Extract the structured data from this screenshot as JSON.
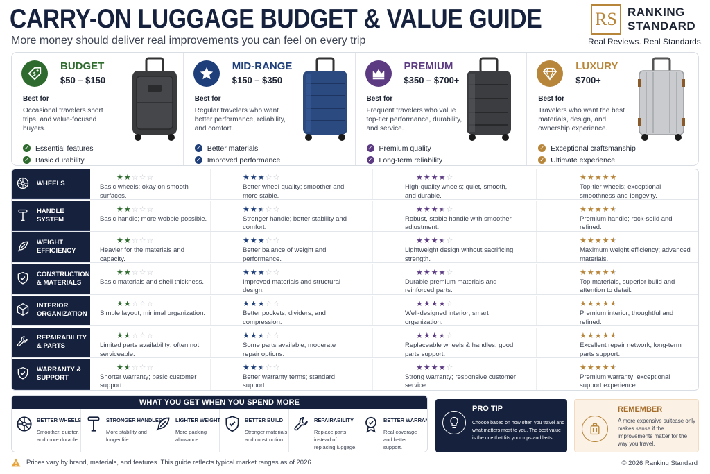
{
  "header": {
    "title": "CARRY-ON LUGGAGE BUDGET & VALUE GUIDE",
    "subtitle": "More money should deliver real improvements you can feel on every trip",
    "brand_logo": "RS",
    "brand_line1": "RANKING",
    "brand_line2": "STANDARD",
    "brand_tagline": "Real Reviews. Real Standards."
  },
  "colors": {
    "navy": "#15213d",
    "budget": "#2f6b2f",
    "midrange": "#1f3f7a",
    "premium": "#5c3b82",
    "luxury": "#b8863b"
  },
  "tiers": [
    {
      "name": "BUDGET",
      "price": "$50 – $150",
      "best_label": "Best for",
      "desc": "Occasional travelers short trips, and value-focused buyers.",
      "features": [
        "Essential features",
        "Basic durability"
      ],
      "icon": "tag-icon",
      "bag": "dark-fabric-suitcase"
    },
    {
      "name": "MID-RANGE",
      "price": "$150 – $350",
      "best_label": "Best for",
      "desc": "Regular travelers who want better performance, reliability, and comfort.",
      "features": [
        "Better materials",
        "Improved performance"
      ],
      "icon": "star-icon",
      "bag": "blue-hardshell-suitcase"
    },
    {
      "name": "PREMIUM",
      "price": "$350 – $700+",
      "best_label": "Best for",
      "desc": "Frequent travelers who value top-tier performance, durability, and service.",
      "features": [
        "Premium quality",
        "Long-term reliability"
      ],
      "icon": "crown-icon",
      "bag": "charcoal-hardshell-suitcase"
    },
    {
      "name": "LUXURY",
      "price": "$700+",
      "best_label": "Best for",
      "desc": "Travelers who want the best materials, design, and ownership experience.",
      "features": [
        "Exceptional craftsmanship",
        "Ultimate experience"
      ],
      "icon": "diamond-icon",
      "bag": "aluminum-suitcase"
    }
  ],
  "rows": [
    {
      "label": "WHEELS",
      "icon": "wheel-icon",
      "cells": [
        {
          "stars": 2,
          "text": "Basic wheels; okay on smooth surfaces."
        },
        {
          "stars": 3,
          "text": "Better wheel quality; smoother and more stable."
        },
        {
          "stars": 4,
          "text": "High-quality wheels; quiet, smooth, and durable."
        },
        {
          "stars": 5,
          "text": "Top-tier wheels; exceptional smoothness and longevity."
        }
      ]
    },
    {
      "label": "HANDLE SYSTEM",
      "icon": "handle-icon",
      "cells": [
        {
          "stars": 2,
          "text": "Basic handle; more wobble possible."
        },
        {
          "stars": 2.5,
          "text": "Stronger handle; better stability and comfort."
        },
        {
          "stars": 3.5,
          "text": "Robust, stable handle with smoother adjustment."
        },
        {
          "stars": 4.5,
          "text": "Premium handle; rock-solid and refined."
        }
      ]
    },
    {
      "label": "WEIGHT EFFICIENCY",
      "icon": "feather-icon",
      "cells": [
        {
          "stars": 2,
          "text": "Heavier for the materials and capacity."
        },
        {
          "stars": 3,
          "text": "Better balance of weight and performance."
        },
        {
          "stars": 3.5,
          "text": "Lightweight design without sacrificing strength."
        },
        {
          "stars": 4.5,
          "text": "Maximum weight efficiency; advanced materials."
        }
      ]
    },
    {
      "label": "CONSTRUCTION & MATERIALS",
      "icon": "shield-check-icon",
      "cells": [
        {
          "stars": 2,
          "text": "Basic materials and shell thickness."
        },
        {
          "stars": 3,
          "text": "Improved materials and structural design."
        },
        {
          "stars": 4,
          "text": "Durable premium materials and reinforced parts."
        },
        {
          "stars": 4.5,
          "text": "Top materials, superior build and attention to detail."
        }
      ]
    },
    {
      "label": "INTERIOR ORGANIZATION",
      "icon": "box-icon",
      "cells": [
        {
          "stars": 2,
          "text": "Simple layout; minimal organization."
        },
        {
          "stars": 3,
          "text": "Better pockets, dividers, and compression."
        },
        {
          "stars": 4,
          "text": "Well-designed interior; smart organization."
        },
        {
          "stars": 4.5,
          "text": "Premium interior; thoughtful and refined."
        }
      ]
    },
    {
      "label": "REPAIRABILITY & PARTS",
      "icon": "wrench-icon",
      "cells": [
        {
          "stars": 1.5,
          "text": "Limited parts availability; often not serviceable."
        },
        {
          "stars": 2.5,
          "text": "Some parts available; moderate repair options."
        },
        {
          "stars": 3.5,
          "text": "Replaceable wheels & handles; good parts support."
        },
        {
          "stars": 4.5,
          "text": "Excellent repair network; long-term parts support."
        }
      ]
    },
    {
      "label": "WARRANTY & SUPPORT",
      "icon": "shield-icon",
      "cells": [
        {
          "stars": 1.5,
          "text": "Shorter warranty; basic customer support."
        },
        {
          "stars": 2.5,
          "text": "Better warranty terms; standard support."
        },
        {
          "stars": 4,
          "text": "Strong warranty; responsive customer service."
        },
        {
          "stars": 4.5,
          "text": "Premium warranty; exceptional support experience."
        }
      ]
    }
  ],
  "spend": {
    "heading": "WHAT YOU GET WHEN YOU SPEND MORE",
    "items": [
      {
        "title": "BETTER WHEELS",
        "desc": "Smoother, quieter, and more durable.",
        "icon": "wheel-icon"
      },
      {
        "title": "STRONGER HANDLES",
        "desc": "More stability and longer life.",
        "icon": "handle-icon"
      },
      {
        "title": "LIGHTER WEIGHT",
        "desc": "More packing allowance.",
        "icon": "feather-icon"
      },
      {
        "title": "BETTER BUILD",
        "desc": "Stronger materials and construction.",
        "icon": "shield-check-icon"
      },
      {
        "title": "REPAIRABILITY",
        "desc": "Replace parts instead of replacing luggage.",
        "icon": "wrench-icon"
      },
      {
        "title": "BETTER WARRANTY",
        "desc": "Real coverage and better support.",
        "icon": "badge-icon"
      }
    ]
  },
  "tip": {
    "title": "PRO TIP",
    "text": "Choose based on how often you travel and what matters most to you. The best value is the one that fits your trips and lasts."
  },
  "remember": {
    "title": "REMEMBER",
    "text": "A more expensive suitcase only makes sense if the improvements matter for the way you travel."
  },
  "footer": {
    "note": "Prices vary by brand, materials, and features. This guide reflects typical market ranges as of 2026.",
    "copyright": "© 2026 Ranking Standard"
  }
}
